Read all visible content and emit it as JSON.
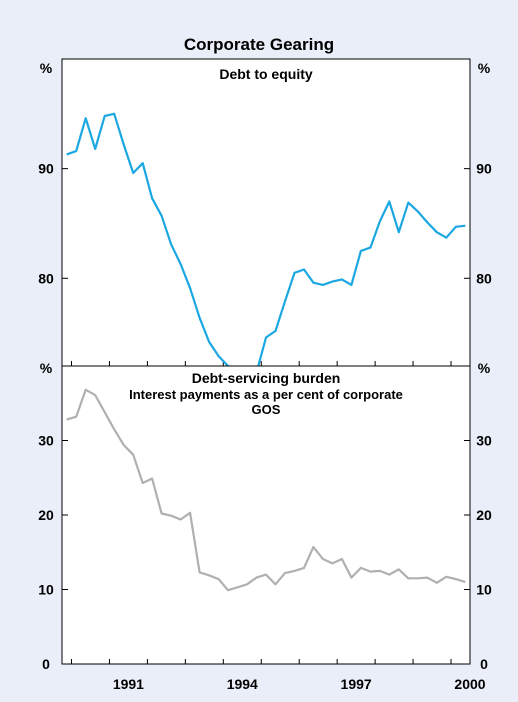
{
  "title": "Corporate Gearing",
  "x_ticks": [
    "1991",
    "1994",
    "1997",
    "2000"
  ],
  "colors": {
    "background": "#e9eef8",
    "panel1_line": "#1ba7e1",
    "panel2_line": "#b0b0b0"
  },
  "chart_data": [
    {
      "type": "line",
      "title": "Debt to equity",
      "unit_label_left": "%",
      "unit_label_right": "%",
      "ylim": [
        72,
        100
      ],
      "yticks": [
        80,
        90
      ],
      "xlim": [
        1989.75,
        2000.5
      ],
      "x_ticks": [
        1991,
        1994,
        1997,
        2000
      ],
      "series": [
        {
          "x": [
            1989.875,
            1990.125,
            1990.375,
            1990.625,
            1990.875,
            1991.125,
            1991.375,
            1991.625,
            1991.875,
            1992.125,
            1992.375,
            1992.625,
            1992.875,
            1993.125,
            1993.375,
            1993.625,
            1993.875,
            1994.125,
            1994.375,
            1994.625,
            1994.875,
            1995.125,
            1995.375,
            1995.625,
            1995.875,
            1996.125,
            1996.375,
            1996.625,
            1996.875,
            1997.125,
            1997.375,
            1997.625,
            1997.875,
            1998.125,
            1998.375,
            1998.625,
            1998.875,
            1999.125,
            1999.375,
            1999.625,
            1999.875,
            2000.125,
            2000.375
          ],
          "y": [
            91.3,
            91.6,
            94.6,
            91.8,
            94.8,
            95.0,
            92.2,
            89.6,
            90.5,
            87.3,
            85.7,
            83.1,
            81.3,
            79.1,
            76.4,
            74.2,
            72.9,
            72.0,
            71.6,
            71.6,
            71.4,
            74.6,
            75.2,
            77.9,
            80.5,
            80.8,
            79.6,
            79.4,
            79.7,
            79.9,
            79.4,
            82.5,
            82.8,
            85.2,
            87.0,
            84.2,
            86.9,
            86.1,
            85.1,
            84.2,
            83.7,
            84.7,
            84.8
          ]
        }
      ]
    },
    {
      "type": "line",
      "title": "Debt-servicing burden",
      "subtitle_line1": "Interest payments as a per cent of corporate",
      "subtitle_line2": "GOS",
      "unit_label_left": "%",
      "unit_label_right": "%",
      "ylim": [
        0,
        40
      ],
      "yticks": [
        0,
        10,
        20,
        30
      ],
      "xlim": [
        1989.75,
        2000.5
      ],
      "x_ticks": [
        1991,
        1994,
        1997,
        2000
      ],
      "series": [
        {
          "x": [
            1989.875,
            1990.125,
            1990.375,
            1990.625,
            1990.875,
            1991.125,
            1991.375,
            1991.625,
            1991.875,
            1992.125,
            1992.375,
            1992.625,
            1992.875,
            1993.125,
            1993.375,
            1993.625,
            1993.875,
            1994.125,
            1994.375,
            1994.625,
            1994.875,
            1995.125,
            1995.375,
            1995.625,
            1995.875,
            1996.125,
            1996.375,
            1996.625,
            1996.875,
            1997.125,
            1997.375,
            1997.625,
            1997.875,
            1998.125,
            1998.375,
            1998.625,
            1998.875,
            1999.125,
            1999.375,
            1999.625,
            1999.875,
            2000.125,
            2000.375
          ],
          "y": [
            32.8,
            33.2,
            36.8,
            36.1,
            33.8,
            31.5,
            29.4,
            28.1,
            24.3,
            24.9,
            20.2,
            19.9,
            19.4,
            20.3,
            12.3,
            11.9,
            11.4,
            9.9,
            10.3,
            10.7,
            11.6,
            12.0,
            10.7,
            12.2,
            12.5,
            12.9,
            15.7,
            14.1,
            13.5,
            14.1,
            11.6,
            12.9,
            12.4,
            12.5,
            12.0,
            12.7,
            11.5,
            11.5,
            11.6,
            10.9,
            11.7,
            11.4,
            11.0
          ]
        }
      ]
    }
  ]
}
